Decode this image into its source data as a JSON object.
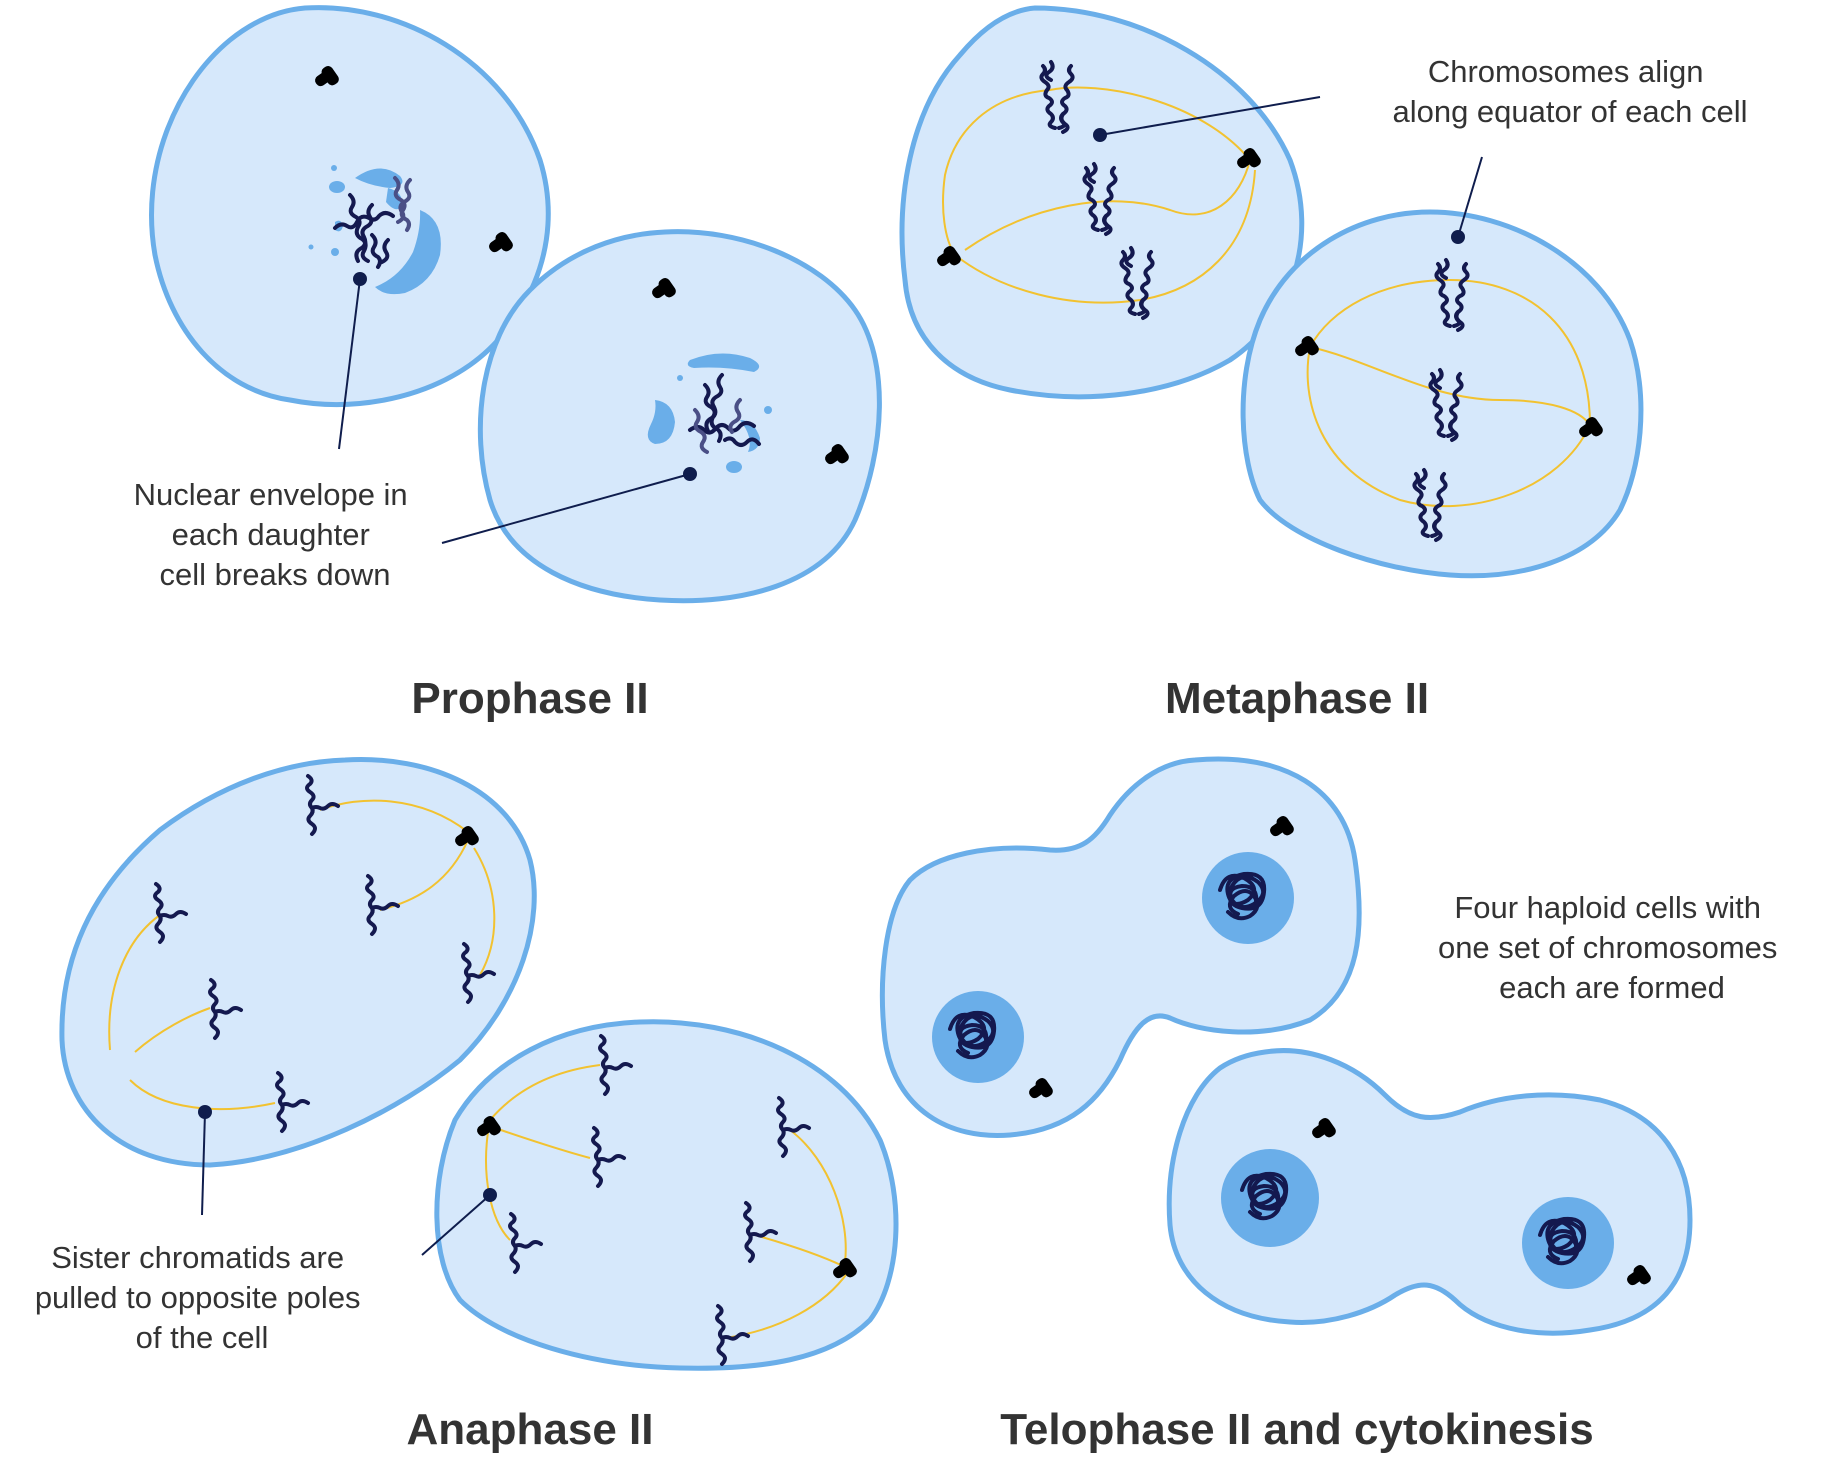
{
  "panels": {
    "prophase": {
      "title": "Prophase II",
      "note": [
        "Nuclear envelope in",
        "each daughter",
        "cell breaks down"
      ]
    },
    "metaphase": {
      "title": "Metaphase II",
      "note": [
        "Chromosomes align",
        "along equator of each cell"
      ]
    },
    "anaphase": {
      "title": "Anaphase II",
      "note": [
        "Sister chromatids are",
        "pulled to opposite poles",
        "of the cell"
      ]
    },
    "telophase": {
      "title": "Telophase II and cytokinesis",
      "note": [
        "Four haploid cells with",
        "one set of chromosomes",
        "each are formed"
      ]
    }
  },
  "colors": {
    "cytoplasm": "#d6e8fb",
    "membrane": "#6aaee9",
    "nucleus": "#6aaee9",
    "chromosome": "#14194f",
    "spindle": "#f2c230",
    "centrosome": "#f7d14f",
    "text": "#333333"
  }
}
